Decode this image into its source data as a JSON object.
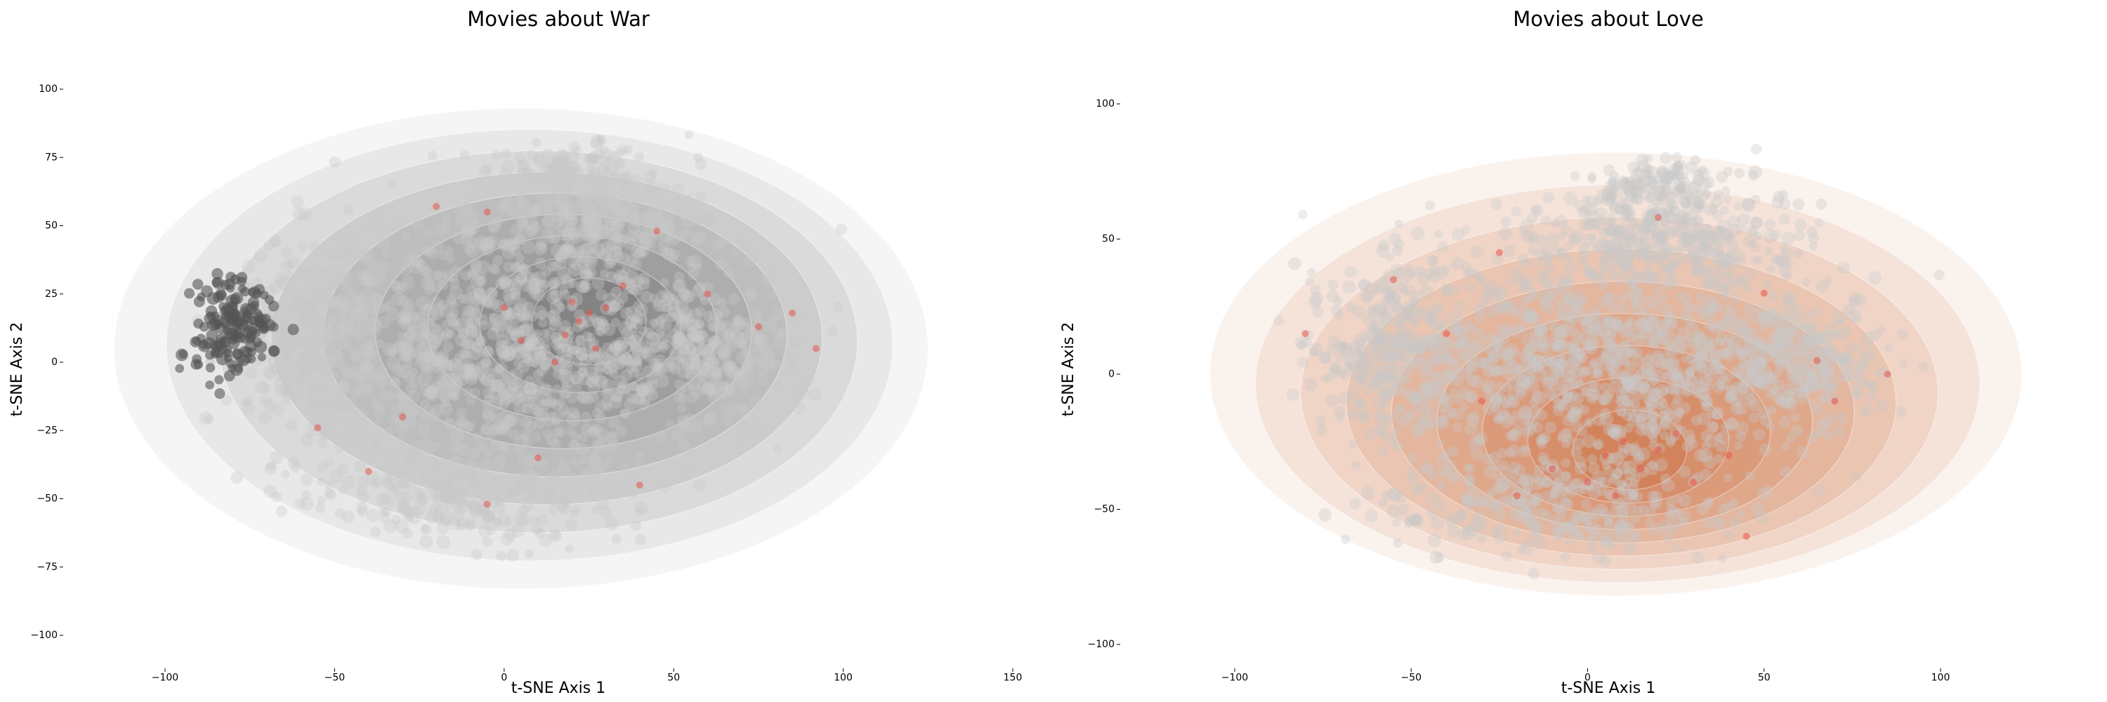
{
  "chart_data": [
    {
      "type": "scatter",
      "title": "Movies about War",
      "xlabel": "t-SNE Axis 1",
      "ylabel": "t-SNE Axis 2",
      "xlim": [
        -110,
        150
      ],
      "ylim": [
        -105,
        108
      ],
      "xticks": [
        -100,
        -50,
        0,
        50,
        100,
        150
      ],
      "yticks": [
        -100,
        -75,
        -50,
        -25,
        0,
        25,
        50,
        75,
        100
      ],
      "xtick_labels": [
        "−100",
        "−50",
        "0",
        "50",
        "100",
        "150"
      ],
      "ytick_labels": [
        "−100",
        "−75",
        "−50",
        "−25",
        "0",
        "25",
        "50",
        "75",
        "100"
      ],
      "grid": false,
      "density_color": "#333333",
      "background_point_color": "#c8c8c8",
      "highlight_point_color": "#e8564a",
      "density_peak": {
        "x": 25,
        "y": 15
      },
      "series": [
        {
          "role": "highlighted",
          "points": [
            [
              20,
              22
            ],
            [
              25,
              18
            ],
            [
              22,
              15
            ],
            [
              30,
              20
            ],
            [
              18,
              10
            ],
            [
              27,
              5
            ],
            [
              35,
              28
            ],
            [
              -20,
              57
            ],
            [
              -5,
              55
            ],
            [
              45,
              48
            ],
            [
              60,
              25
            ],
            [
              75,
              13
            ],
            [
              85,
              18
            ],
            [
              92,
              5
            ],
            [
              -30,
              -20
            ],
            [
              -55,
              -24
            ],
            [
              -40,
              -40
            ],
            [
              -5,
              -52
            ],
            [
              10,
              -35
            ],
            [
              40,
              -45
            ],
            [
              0,
              20
            ],
            [
              5,
              8
            ],
            [
              15,
              0
            ]
          ]
        }
      ]
    },
    {
      "type": "scatter",
      "title": "Movies about Love",
      "xlabel": "t-SNE Axis 1",
      "ylabel": "t-SNE Axis 2",
      "xlim": [
        -110,
        150
      ],
      "ylim": [
        -105,
        108
      ],
      "xticks": [
        -100,
        -50,
        0,
        50,
        100
      ],
      "yticks": [
        -100,
        -50,
        0,
        50,
        100
      ],
      "xtick_labels": [
        "−100",
        "−50",
        "0",
        "50",
        "100"
      ],
      "ytick_labels": [
        "−100",
        "−50",
        "0",
        "50",
        "100"
      ],
      "grid": false,
      "density_color": "#c4531d",
      "background_point_color": "#c8c8c8",
      "highlight_point_color": "#e8564a",
      "density_peak": {
        "x": 12,
        "y": -28
      },
      "series": [
        {
          "role": "highlighted",
          "points": [
            [
              5,
              -30
            ],
            [
              10,
              -25
            ],
            [
              15,
              -35
            ],
            [
              20,
              -28
            ],
            [
              0,
              -40
            ],
            [
              -10,
              -35
            ],
            [
              25,
              -22
            ],
            [
              30,
              -40
            ],
            [
              8,
              -45
            ],
            [
              -20,
              -45
            ],
            [
              40,
              -30
            ],
            [
              -40,
              15
            ],
            [
              -80,
              15
            ],
            [
              -55,
              35
            ],
            [
              -25,
              45
            ],
            [
              20,
              58
            ],
            [
              50,
              30
            ],
            [
              65,
              5
            ],
            [
              -30,
              -10
            ],
            [
              45,
              -60
            ],
            [
              85,
              0
            ],
            [
              70,
              -10
            ]
          ]
        }
      ]
    }
  ]
}
